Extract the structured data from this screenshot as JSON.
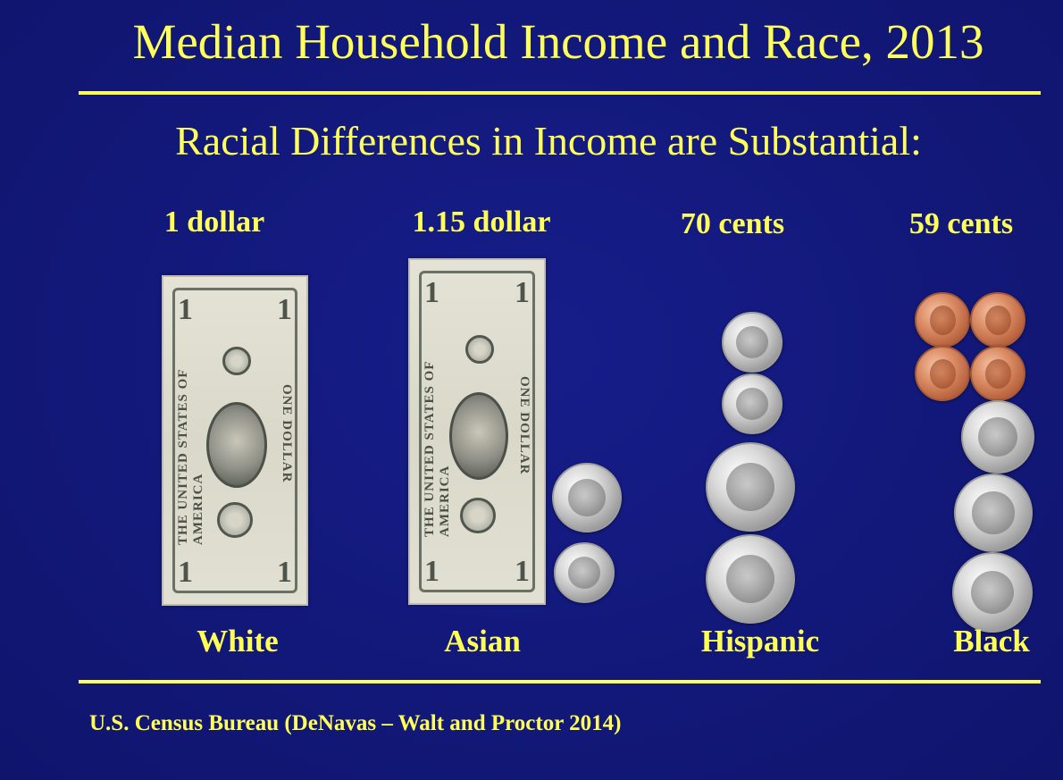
{
  "slide": {
    "title": "Median Household Income and Race, 2013",
    "subtitle": "Racial Differences in Income are Substantial:",
    "source": "U.S. Census Bureau (DeNavas – Walt and Proctor 2014)"
  },
  "groups": [
    {
      "label": "White",
      "amount": "1 dollar",
      "money": [
        "dollar-bill"
      ]
    },
    {
      "label": "Asian",
      "amount": "1.15 dollar",
      "money": [
        "dollar-bill",
        "nickel",
        "dime"
      ]
    },
    {
      "label": "Hispanic",
      "amount": "70 cents",
      "money": [
        "dime",
        "dime",
        "quarter",
        "quarter"
      ]
    },
    {
      "label": "Black",
      "amount": "59 cents",
      "money": [
        "penny",
        "penny",
        "penny",
        "penny",
        "nickel",
        "quarter",
        "quarter"
      ]
    }
  ],
  "bill": {
    "denomination": "1",
    "header": "THE UNITED STATES OF AMERICA",
    "footer": "ONE DOLLAR"
  },
  "colors": {
    "background": "#12177a",
    "text": "#ffff55",
    "rule": "#ffff55"
  }
}
